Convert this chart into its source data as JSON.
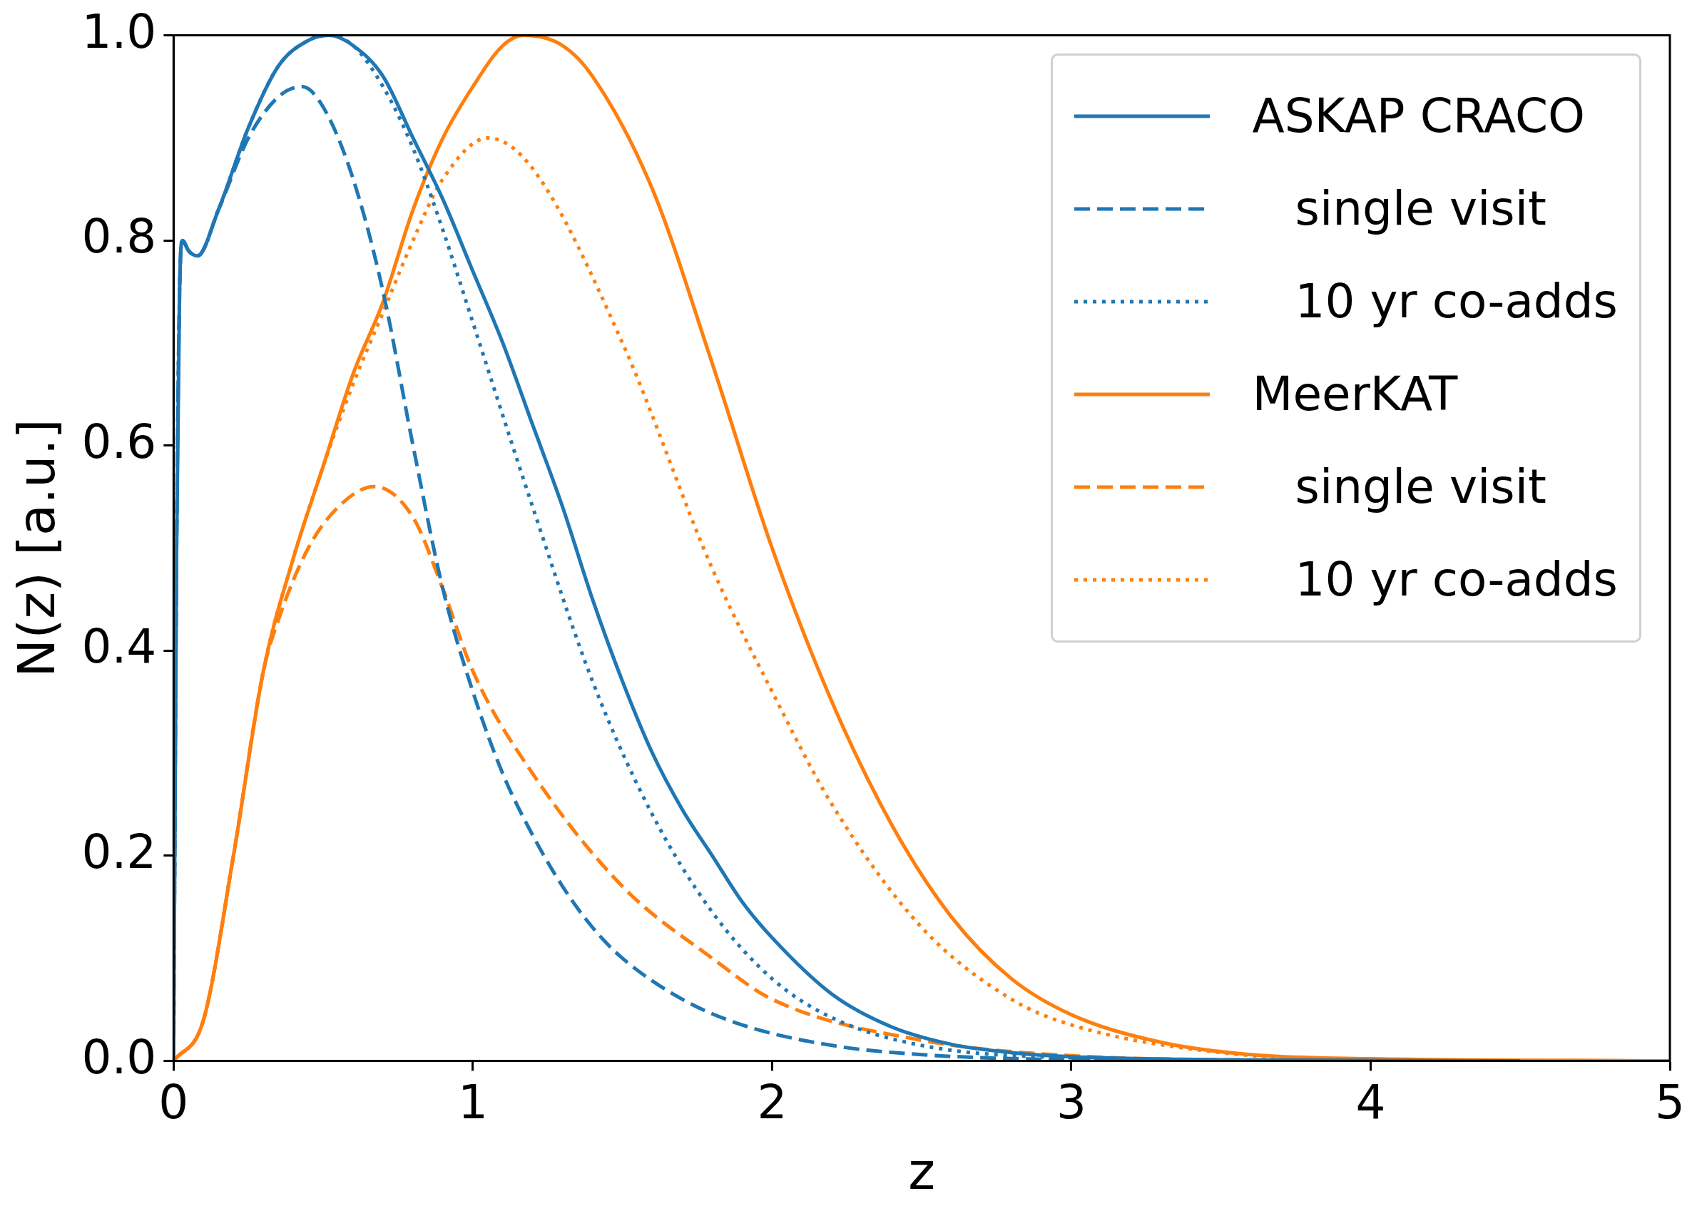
{
  "chart_data": {
    "type": "line",
    "xlabel": "z",
    "ylabel": "N(z) [a.u.]",
    "xlim": [
      0,
      5
    ],
    "xticks": [
      0,
      1,
      2,
      3,
      4,
      5
    ],
    "ylim": [
      0,
      1.0
    ],
    "yticks": [
      {
        "value": 0,
        "label": "0.0"
      },
      {
        "value": 0.2,
        "label": "0.2"
      },
      {
        "value": 0.4,
        "label": "0.4"
      },
      {
        "value": 0.6,
        "label": "0.6"
      },
      {
        "value": 0.8,
        "label": "0.8"
      },
      {
        "value": 1.0,
        "label": "1.0"
      }
    ],
    "grid": false,
    "legend": "top right",
    "marker": "none",
    "series": [
      {
        "name": "ASKAP CRACO",
        "color": "#1f77b4",
        "line_style": "solid",
        "x": [
          0,
          0.01,
          0.02,
          0.03,
          0.05,
          0.08,
          0.15,
          0.25,
          0.35,
          0.45,
          0.52,
          0.6,
          0.7,
          0.8,
          0.9,
          1.0,
          1.1,
          1.2,
          1.3,
          1.4,
          1.5,
          1.6,
          1.7,
          1.8,
          1.9,
          2.0,
          2.2,
          2.4,
          2.6,
          2.8,
          3.0,
          3.5,
          4.5
        ],
        "values": [
          0,
          0.5,
          0.75,
          0.8,
          0.79,
          0.785,
          0.83,
          0.91,
          0.97,
          0.995,
          1.0,
          0.99,
          0.96,
          0.9,
          0.84,
          0.77,
          0.7,
          0.62,
          0.54,
          0.45,
          0.37,
          0.3,
          0.245,
          0.2,
          0.155,
          0.12,
          0.065,
          0.033,
          0.016,
          0.008,
          0.004,
          0.001,
          0
        ]
      },
      {
        "name": "single visit",
        "color": "#1f77b4",
        "line_style": "dashed",
        "x": [
          0,
          0.01,
          0.02,
          0.03,
          0.05,
          0.08,
          0.15,
          0.25,
          0.35,
          0.43,
          0.5,
          0.6,
          0.7,
          0.8,
          0.9,
          1.0,
          1.1,
          1.2,
          1.3,
          1.4,
          1.5,
          1.7,
          1.9,
          2.2,
          2.5,
          3,
          3.5
        ],
        "values": [
          0,
          0.5,
          0.75,
          0.8,
          0.79,
          0.785,
          0.83,
          0.9,
          0.94,
          0.95,
          0.93,
          0.86,
          0.75,
          0.6,
          0.46,
          0.36,
          0.28,
          0.22,
          0.17,
          0.13,
          0.1,
          0.06,
          0.035,
          0.015,
          0.006,
          0.001,
          0
        ]
      },
      {
        "name": "10 yr co-adds",
        "color": "#1f77b4",
        "line_style": "dotted",
        "x": [
          0,
          0.01,
          0.02,
          0.03,
          0.05,
          0.08,
          0.15,
          0.25,
          0.35,
          0.45,
          0.52,
          0.6,
          0.7,
          0.8,
          0.9,
          1.0,
          1.2,
          1.4,
          1.6,
          1.8,
          2.0,
          2.2,
          2.5,
          3,
          4
        ],
        "values": [
          0,
          0.5,
          0.75,
          0.8,
          0.79,
          0.785,
          0.83,
          0.91,
          0.97,
          0.995,
          1.0,
          0.99,
          0.95,
          0.89,
          0.81,
          0.72,
          0.54,
          0.37,
          0.24,
          0.145,
          0.08,
          0.042,
          0.015,
          0.003,
          0
        ]
      },
      {
        "name": "MeerKAT",
        "color": "#ff7f0e",
        "line_style": "solid",
        "x": [
          0,
          0.1,
          0.2,
          0.3,
          0.4,
          0.5,
          0.6,
          0.7,
          0.8,
          0.9,
          1.0,
          1.1,
          1.17,
          1.3,
          1.4,
          1.6,
          1.8,
          2.0,
          2.2,
          2.4,
          2.6,
          2.8,
          3.0,
          3.3,
          3.6,
          4,
          5
        ],
        "values": [
          0,
          0.04,
          0.2,
          0.38,
          0.49,
          0.58,
          0.67,
          0.74,
          0.83,
          0.9,
          0.95,
          0.99,
          1.0,
          0.99,
          0.96,
          0.85,
          0.68,
          0.5,
          0.35,
          0.23,
          0.14,
          0.08,
          0.045,
          0.018,
          0.006,
          0.002,
          0
        ]
      },
      {
        "name": "single visit",
        "color": "#ff7f0e",
        "line_style": "dashed",
        "x": [
          0,
          0.1,
          0.2,
          0.3,
          0.35,
          0.45,
          0.55,
          0.67,
          0.8,
          0.9,
          1.0,
          1.2,
          1.5,
          1.8,
          2.0,
          2.5,
          3,
          3.8
        ],
        "values": [
          0,
          0.04,
          0.2,
          0.38,
          0.43,
          0.5,
          0.54,
          0.56,
          0.53,
          0.46,
          0.38,
          0.28,
          0.17,
          0.1,
          0.06,
          0.02,
          0.005,
          0
        ]
      },
      {
        "name": "10 yr co-adds",
        "color": "#ff7f0e",
        "line_style": "dotted",
        "x": [
          0,
          0.1,
          0.2,
          0.3,
          0.4,
          0.5,
          0.6,
          0.7,
          0.8,
          0.9,
          1.05,
          1.2,
          1.5,
          1.8,
          2.0,
          2.2,
          2.5,
          2.8,
          3.0,
          3.5,
          4,
          4.6
        ],
        "values": [
          0,
          0.04,
          0.2,
          0.38,
          0.49,
          0.58,
          0.66,
          0.73,
          0.8,
          0.86,
          0.9,
          0.87,
          0.7,
          0.48,
          0.36,
          0.25,
          0.13,
          0.06,
          0.035,
          0.008,
          0.001,
          0
        ]
      }
    ]
  }
}
